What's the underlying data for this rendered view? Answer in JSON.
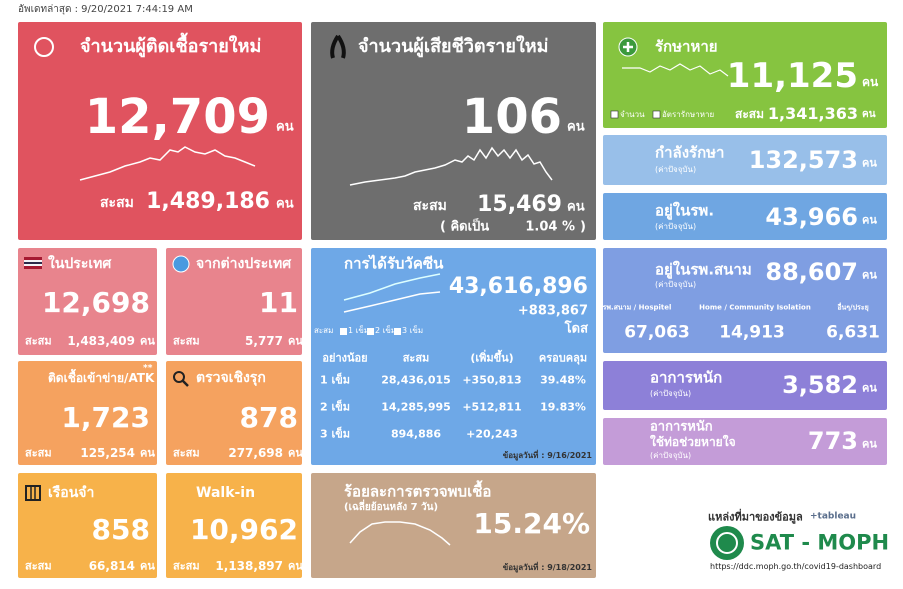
{
  "header": {
    "updated": "อัพเดทล่าสุด : 9/20/2021 7:44:19 AM"
  },
  "unit": "คน",
  "cumulative": "สะสม",
  "new_cases": {
    "title": "จำนวนผู้ติดเชื้อรายใหม่",
    "value": "12,709",
    "total": "1,489,186"
  },
  "new_deaths": {
    "title": "จำนวนผู้เสียชีวิตรายใหม่",
    "value": "106",
    "total": "15,469",
    "rate_prefix": "( คิดเป็น",
    "rate": "1.04 %",
    "rate_suffix": ")"
  },
  "recovered": {
    "title": "รักษาหาย",
    "value": "11,125",
    "legend": [
      "จำนวน",
      "อัตรารักษาหาย"
    ],
    "total": "1,341,363"
  },
  "treating": {
    "title": "กำลังรักษา",
    "note": "(ค่าปัจจุบัน)",
    "value": "132,573"
  },
  "hospital": {
    "title": "อยู่ในรพ.",
    "note": "(ค่าปัจจุบัน)",
    "value": "43,966"
  },
  "domestic": {
    "title": "ในประเทศ",
    "value": "12,698",
    "total": "1,483,409"
  },
  "imported": {
    "title": "จากต่างประเทศ",
    "value": "11",
    "total": "5,777"
  },
  "atk": {
    "title": "ติดเชื้อเข้าข่าย/ATK",
    "mark": "**",
    "value": "1,723",
    "total": "125,254"
  },
  "proactive": {
    "title": "ตรวจเชิงรุก",
    "value": "878",
    "total": "277,698"
  },
  "prison": {
    "title": "เรือนจำ",
    "value": "858",
    "total": "66,814"
  },
  "walkin": {
    "title": "Walk-in",
    "value": "10,962",
    "total": "1,138,897"
  },
  "vaccine": {
    "title": "การได้รับวัคซีน",
    "value": "43,616,896",
    "increase": "+883,867",
    "unit": "โดส",
    "legend": [
      "สะสม",
      "1 เข็ม",
      "2 เข็ม",
      "3 เข็ม"
    ],
    "columns": [
      "อย่างน้อย",
      "สะสม",
      "(เพิ่มขึ้น)",
      "ครอบคลุม"
    ],
    "rows": [
      [
        "1 เข็ม",
        "28,436,015",
        "+350,813",
        "39.48%"
      ],
      [
        "2 เข็ม",
        "14,285,995",
        "+512,811",
        "19.83%"
      ],
      [
        "3 เข็ม",
        "894,886",
        "+20,243"
      ]
    ],
    "date": "ข้อมูลวันที่ : 9/16/2021"
  },
  "positivity": {
    "title": "ร้อยละการตรวจพบเชื้อ",
    "subtitle": "(เฉลี่ยย้อนหลัง 7 วัน)",
    "value": "15.24%",
    "date": "ข้อมูลวันที่ : 9/18/2021"
  },
  "field_hospital": {
    "title": "อยู่ในรพ.สนาม",
    "note": "(ค่าปัจจุบัน)",
    "value": "88,607",
    "breakdown": [
      {
        "label": "รพ.สนาม / Hospitel",
        "value": "67,063"
      },
      {
        "label": "Home / Community Isolation",
        "value": "14,913"
      },
      {
        "label": "อื่นๆ/ประยุ",
        "value": "6,631"
      }
    ]
  },
  "severe": {
    "title": "อาการหนัก",
    "note": "(ค่าปัจจุบัน)",
    "value": "3,582"
  },
  "ventilator": {
    "title": "อาการหนัก",
    "subtitle": "ใช้ท่อช่วยหายใจ",
    "note": "(ค่าปัจจุบัน)",
    "value": "773"
  },
  "source": {
    "label": "แหล่งที่มาของข้อมูล",
    "tool": "+tableau",
    "org": "SAT - MOPH",
    "url": "https://ddc.moph.go.th/covid19-dashboard"
  }
}
